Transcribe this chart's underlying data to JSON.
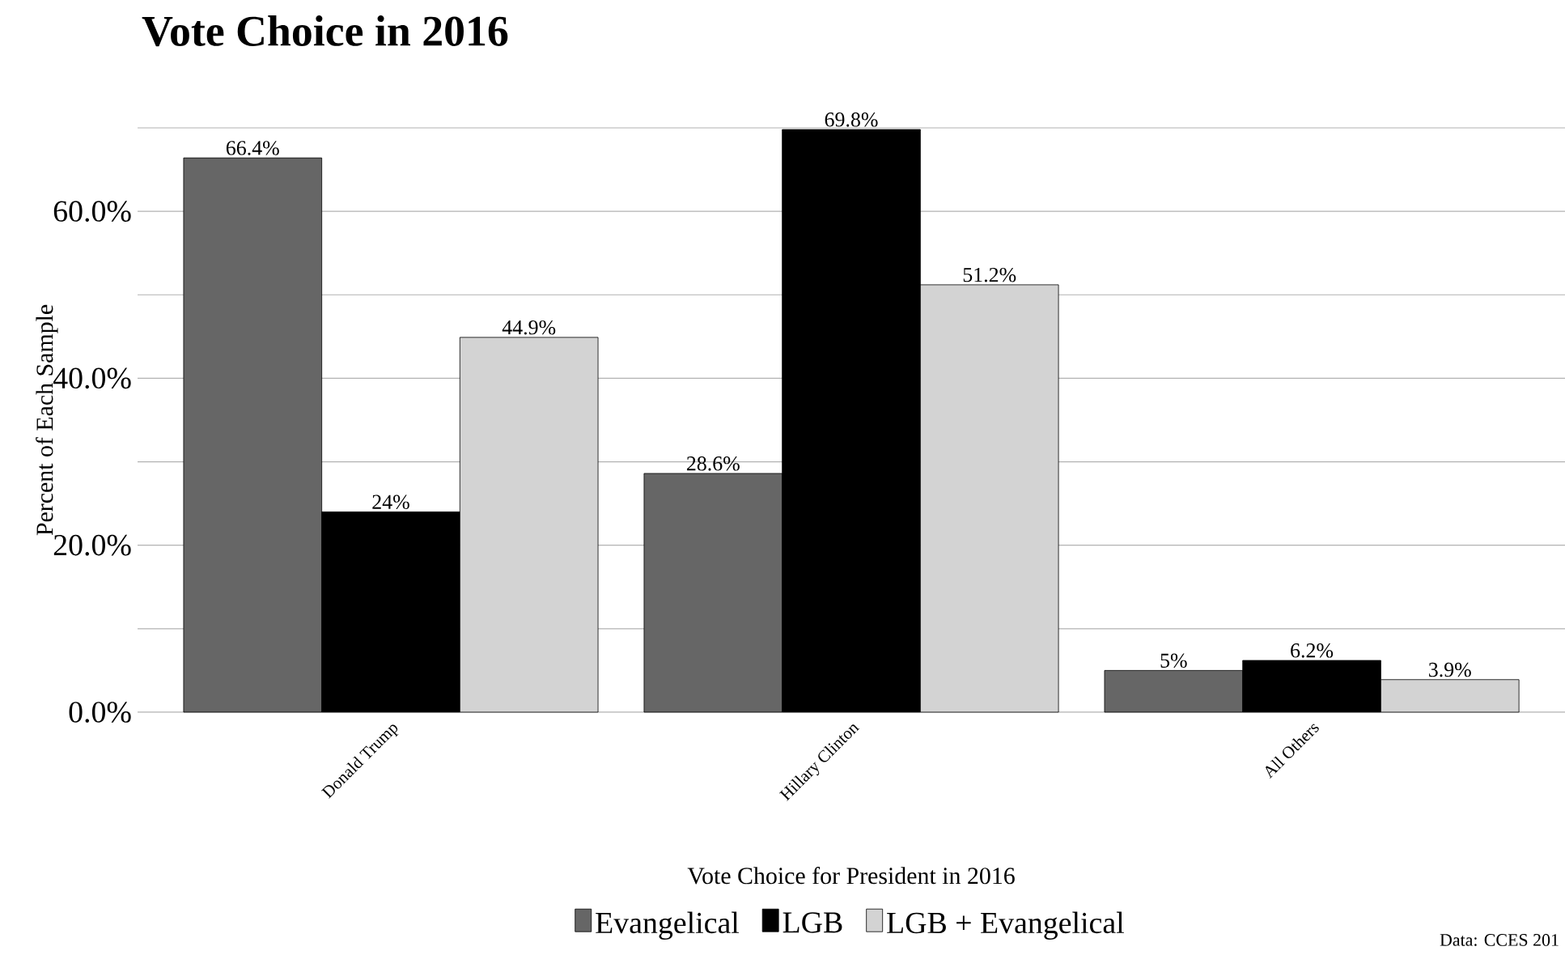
{
  "chart_data": {
    "type": "bar",
    "title": "Vote Choice in 2016",
    "xlabel": "Vote Choice for President in 2016",
    "ylabel": "Percent of Each Sample",
    "categories": [
      "Donald Trump",
      "Hillary Clinton",
      "All Others"
    ],
    "series": [
      {
        "name": "Evangelical",
        "color": "#666666",
        "values": [
          66.4,
          28.6,
          5
        ],
        "value_labels": [
          "66.4%",
          "28.6%",
          "5%"
        ]
      },
      {
        "name": "LGB",
        "color": "#000000",
        "values": [
          24,
          69.8,
          6.2
        ],
        "value_labels": [
          "24%",
          "69.8%",
          "6.2%"
        ]
      },
      {
        "name": "LGB + Evangelical",
        "color": "#d3d3d3",
        "values": [
          44.9,
          51.2,
          3.9
        ],
        "value_labels": [
          "44.9%",
          "51.2%",
          "3.9%"
        ]
      }
    ],
    "ylim": [
      0,
      70
    ],
    "yticks": [
      {
        "value": 0,
        "label": "0.0%"
      },
      {
        "value": 10,
        "label": null
      },
      {
        "value": 20,
        "label": "20.0%"
      },
      {
        "value": 30,
        "label": null
      },
      {
        "value": 40,
        "label": "40.0%"
      },
      {
        "value": 50,
        "label": null
      },
      {
        "value": 60,
        "label": "60.0%"
      },
      {
        "value": 70,
        "label": null
      }
    ],
    "grid": "y",
    "legend": "bottom",
    "annotations": [
      "Data: CCES 201"
    ]
  }
}
